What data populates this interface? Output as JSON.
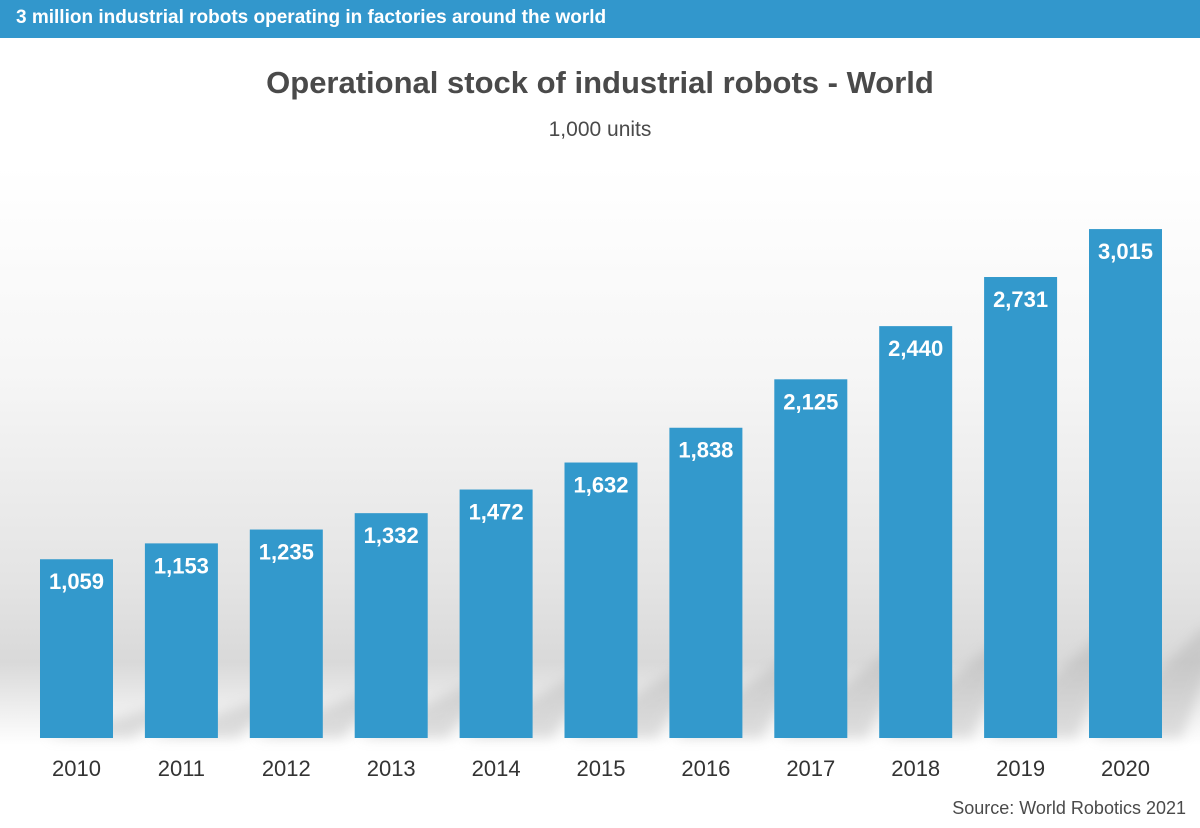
{
  "banner": {
    "text": "3 million industrial robots operating in factories around the world"
  },
  "chart_data": {
    "type": "bar",
    "title": "Operational stock of industrial robots - World",
    "subtitle": "1,000 units",
    "categories": [
      "2010",
      "2011",
      "2012",
      "2013",
      "2014",
      "2015",
      "2016",
      "2017",
      "2018",
      "2019",
      "2020"
    ],
    "values": [
      1059,
      1153,
      1235,
      1332,
      1472,
      1632,
      1838,
      2125,
      2440,
      2731,
      3015
    ],
    "value_labels": [
      "1,059",
      "1,153",
      "1,235",
      "1,332",
      "1,472",
      "1,632",
      "1,838",
      "2,125",
      "2,440",
      "2,731",
      "3,015"
    ],
    "xlabel": "",
    "ylabel": "",
    "grid": false,
    "legend": "none",
    "bar_color": "#3399cc",
    "source": "Source: World Robotics 2021"
  },
  "colors": {
    "banner": "#3297cc",
    "bar": "#3399cc",
    "title": "#4a4a4a"
  }
}
